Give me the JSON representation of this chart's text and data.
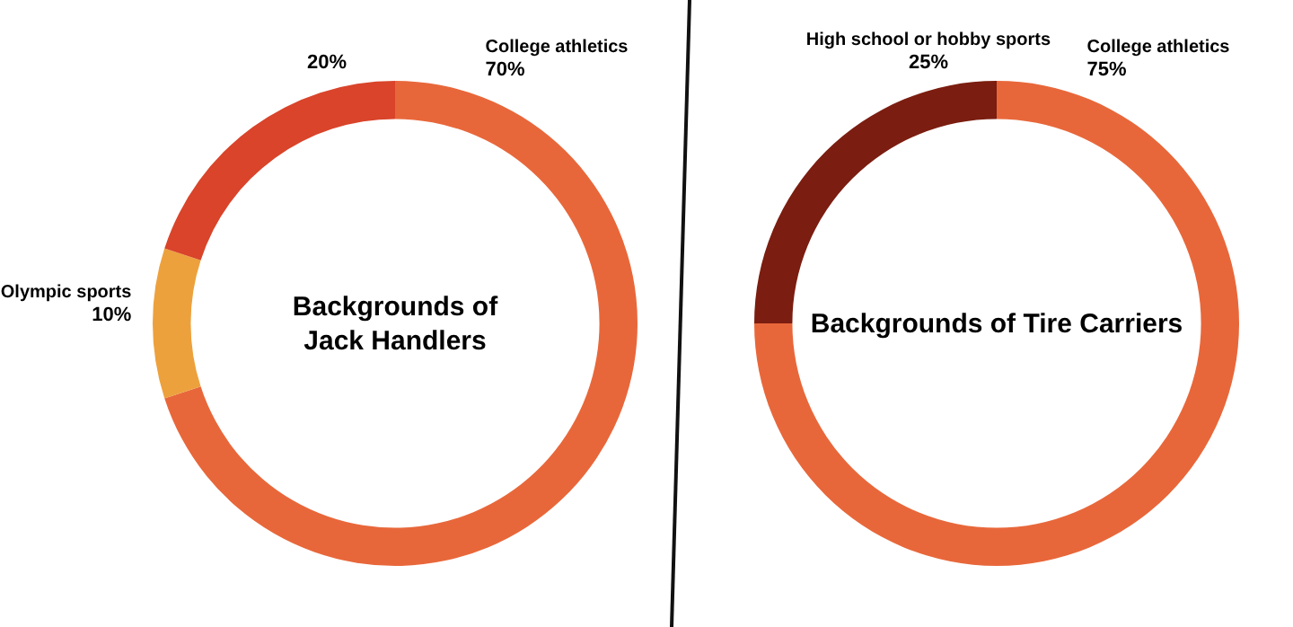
{
  "chart_data": [
    {
      "type": "donut",
      "title": "Backgrounds of\nJack Handlers",
      "categories": [
        "College athletics",
        "Olympic sports",
        null
      ],
      "values": [
        70,
        10,
        20
      ],
      "colors": [
        "#e8673a",
        "#eda13c",
        "#d9442a"
      ],
      "value_labels": [
        "70%",
        "10%",
        "20%"
      ]
    },
    {
      "type": "donut",
      "title": "Backgrounds of Tire Carriers",
      "categories": [
        "College athletics",
        "High school or hobby sports"
      ],
      "values": [
        75,
        25
      ],
      "colors": [
        "#e8673a",
        "#7b1d10"
      ],
      "value_labels": [
        "75%",
        "25%"
      ]
    }
  ]
}
